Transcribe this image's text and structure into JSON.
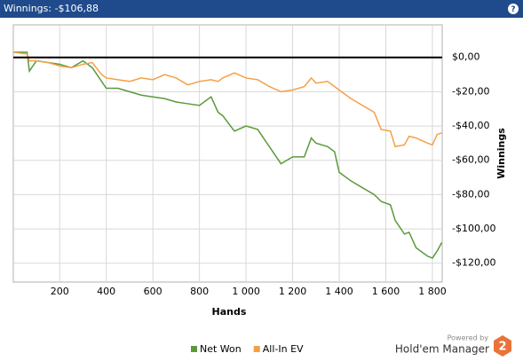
{
  "chart_data": {
    "type": "line",
    "title": "Winnings: -$106,88",
    "help": "?",
    "x_label": "Hands",
    "y_label": "Winnings",
    "x": [
      1,
      60,
      70,
      100,
      150,
      200,
      250,
      300,
      340,
      380,
      400,
      450,
      500,
      550,
      600,
      650,
      700,
      750,
      800,
      850,
      880,
      900,
      950,
      1000,
      1050,
      1100,
      1150,
      1200,
      1250,
      1280,
      1300,
      1350,
      1380,
      1400,
      1450,
      1500,
      1550,
      1580,
      1620,
      1640,
      1680,
      1700,
      1730,
      1780,
      1800,
      1820,
      1840
    ],
    "series": [
      {
        "name": "Net Won",
        "color": "#5b9a3c",
        "values": [
          3,
          3,
          -8,
          -2,
          -3,
          -4,
          -6,
          -2,
          -6,
          -14,
          -18,
          -18,
          -20,
          -22,
          -23,
          -24,
          -26,
          -27,
          -28,
          -23,
          -32,
          -34,
          -43,
          -40,
          -42,
          -52,
          -62,
          -58,
          -58,
          -47,
          -50,
          -52,
          -55,
          -67,
          -72,
          -76,
          -80,
          -84,
          -86,
          -95,
          -103,
          -102,
          -111,
          -116,
          -117,
          -113,
          -108
        ]
      },
      {
        "name": "All-In EV",
        "color": "#f4a046",
        "values": [
          3,
          2,
          -2,
          -2,
          -3,
          -5,
          -6,
          -4,
          -3,
          -10,
          -12,
          -13,
          -14,
          -12,
          -13,
          -10,
          -12,
          -16,
          -14,
          -13,
          -14,
          -12,
          -9,
          -12,
          -13,
          -17,
          -20,
          -19,
          -17,
          -12,
          -15,
          -14,
          -17,
          -19,
          -24,
          -28,
          -32,
          -42,
          -43,
          -52,
          -51,
          -46,
          -47,
          -50,
          -51,
          -45,
          -44
        ]
      }
    ],
    "xlim": [
      1,
      1842
    ],
    "xticks": [
      200,
      400,
      600,
      800,
      {
        "value": 1000,
        "label": "1 000"
      },
      {
        "value": 1200,
        "label": "1 200"
      },
      {
        "value": 1400,
        "label": "1 400"
      },
      {
        "value": 1600,
        "label": "1 600"
      },
      {
        "value": 1800,
        "label": "1 800"
      }
    ],
    "ylim": [
      -131,
      19
    ],
    "yticks": [
      {
        "value": 0,
        "label": "$0,00"
      },
      {
        "value": -20,
        "label": "-$20,00"
      },
      {
        "value": -40,
        "label": "-$40,00"
      },
      {
        "value": -60,
        "label": "-$60,00"
      },
      {
        "value": -80,
        "label": "-$80,00"
      },
      {
        "value": -100,
        "label": "-$100,00"
      },
      {
        "value": -120,
        "label": "-$120,00"
      }
    ],
    "grid": true,
    "branding": {
      "powered_by": "Powered by",
      "product": "Hold'em Manager",
      "version": "2"
    }
  }
}
